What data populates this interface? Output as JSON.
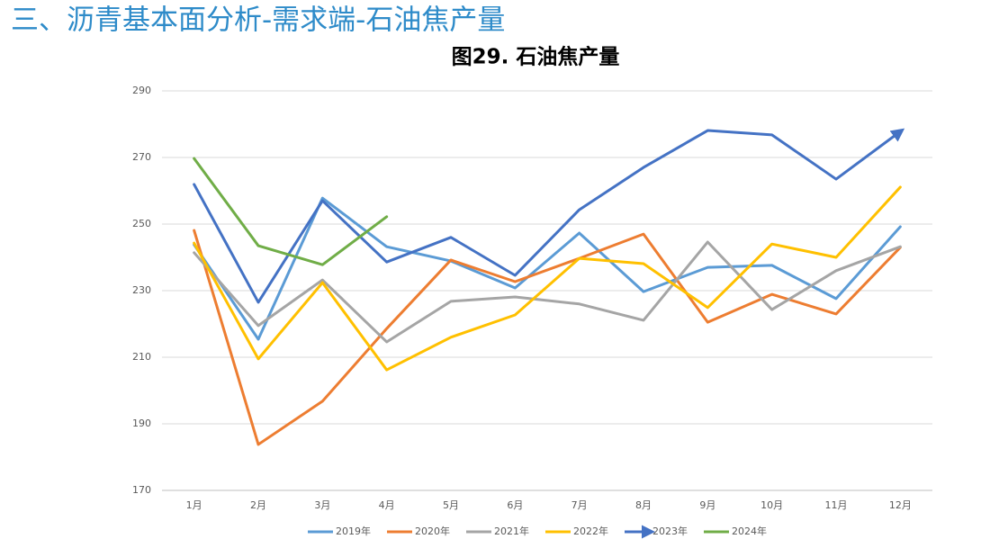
{
  "header": {
    "title": "三、沥青基本面分析-需求端-石油焦产量"
  },
  "chart_data": {
    "type": "line",
    "title": "图29. 石油焦产量",
    "categories": [
      "1月",
      "2月",
      "3月",
      "4月",
      "5月",
      "6月",
      "7月",
      "8月",
      "9月",
      "10月",
      "11月",
      "12月"
    ],
    "series": [
      {
        "name": "2019年",
        "color": "#5B9BD5",
        "values": [
          243.8,
          215.4,
          257.8,
          243.2,
          238.9,
          230.8,
          247.3,
          229.7,
          237,
          237.6,
          227.6,
          249.2
        ]
      },
      {
        "name": "2020年",
        "color": "#ED7D31",
        "values": [
          248.1,
          183.8,
          196.8,
          218.6,
          239.2,
          232.7,
          239.7,
          247,
          220.5,
          228.9,
          223,
          243
        ]
      },
      {
        "name": "2021年",
        "color": "#A5A5A5",
        "values": [
          241.4,
          219.5,
          233.2,
          214.6,
          226.8,
          228.1,
          226,
          221.1,
          244.6,
          224.3,
          236,
          243.2
        ]
      },
      {
        "name": "2022年",
        "color": "#FFC000",
        "values": [
          244.3,
          209.5,
          232.4,
          206.2,
          216,
          222.7,
          239.7,
          238.1,
          224.9,
          244,
          240,
          261.1
        ]
      },
      {
        "name": "2023年",
        "color": "#4472C4",
        "arrow": true,
        "values": [
          261.9,
          226.5,
          257,
          238.6,
          246,
          234.6,
          254.3,
          267,
          278.1,
          276.8,
          263.5,
          277.8
        ]
      },
      {
        "name": "2024年",
        "color": "#70AD47",
        "values": [
          269.7,
          243.5,
          237.8,
          252.2,
          null,
          null,
          null,
          null,
          null,
          null,
          null,
          null
        ]
      }
    ],
    "ylim": [
      170,
      290
    ],
    "yticks": [
      170,
      190,
      210,
      230,
      250,
      270,
      290
    ],
    "grid": true,
    "legend": "bottom"
  }
}
